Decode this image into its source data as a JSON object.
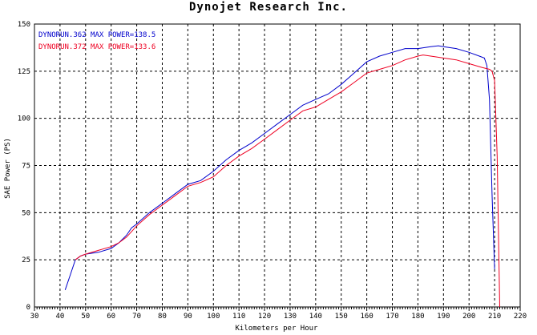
{
  "chart_data": {
    "type": "line",
    "title": "Dynojet  Research  Inc.",
    "xlabel": "Kilometers per Hour",
    "ylabel": "SAE Power (PS)",
    "xlim": [
      30,
      220
    ],
    "ylim": [
      0,
      150
    ],
    "x_ticks": [
      "30",
      "40",
      "50",
      "60",
      "70",
      "80",
      "90",
      "100",
      "110",
      "120",
      "130",
      "140",
      "150",
      "160",
      "170",
      "180",
      "190",
      "200",
      "210",
      "220"
    ],
    "y_ticks": [
      "0",
      "25",
      "50",
      "75",
      "100",
      "125",
      "150"
    ],
    "grid": true,
    "legend_position": "top-left",
    "series": [
      {
        "name": "DYNORUN.362  MAX POWER=138.5",
        "color": "#0000cc",
        "x": [
          42,
          44,
          46,
          48,
          50,
          55,
          60,
          63,
          66,
          68,
          70,
          75,
          80,
          85,
          90,
          95,
          100,
          105,
          110,
          115,
          120,
          125,
          130,
          135,
          140,
          145,
          150,
          155,
          160,
          165,
          170,
          175,
          180,
          185,
          188,
          190,
          195,
          200,
          204,
          206,
          207,
          208,
          209,
          210
        ],
        "y": [
          9,
          17,
          25,
          27,
          28,
          29,
          31,
          34,
          38,
          42,
          44,
          50,
          55,
          60,
          65,
          67,
          72,
          78,
          83,
          87,
          92,
          97,
          102,
          107,
          110,
          113,
          118,
          124,
          130,
          133,
          135,
          137,
          137,
          138,
          138.5,
          138,
          137,
          135,
          133,
          132,
          128,
          110,
          60,
          20
        ]
      },
      {
        "name": "DYNORUN.372  MAX POWER=133.6",
        "color": "#ee0022",
        "x": [
          46,
          48,
          50,
          55,
          60,
          63,
          66,
          68,
          70,
          75,
          80,
          85,
          90,
          95,
          100,
          105,
          110,
          115,
          120,
          125,
          130,
          135,
          140,
          145,
          150,
          155,
          160,
          165,
          170,
          175,
          180,
          182,
          185,
          190,
          195,
          200,
          205,
          208,
          209,
          210,
          211,
          212
        ],
        "y": [
          25,
          27,
          28,
          30,
          32,
          34,
          37,
          40,
          43,
          49,
          54,
          59,
          64,
          66,
          69,
          75,
          80,
          84,
          89,
          94,
          99,
          104,
          106,
          110,
          114,
          119,
          124,
          126,
          128,
          131,
          133,
          133.6,
          133,
          132,
          131,
          129,
          127,
          126,
          125,
          120,
          80,
          0
        ]
      }
    ]
  }
}
